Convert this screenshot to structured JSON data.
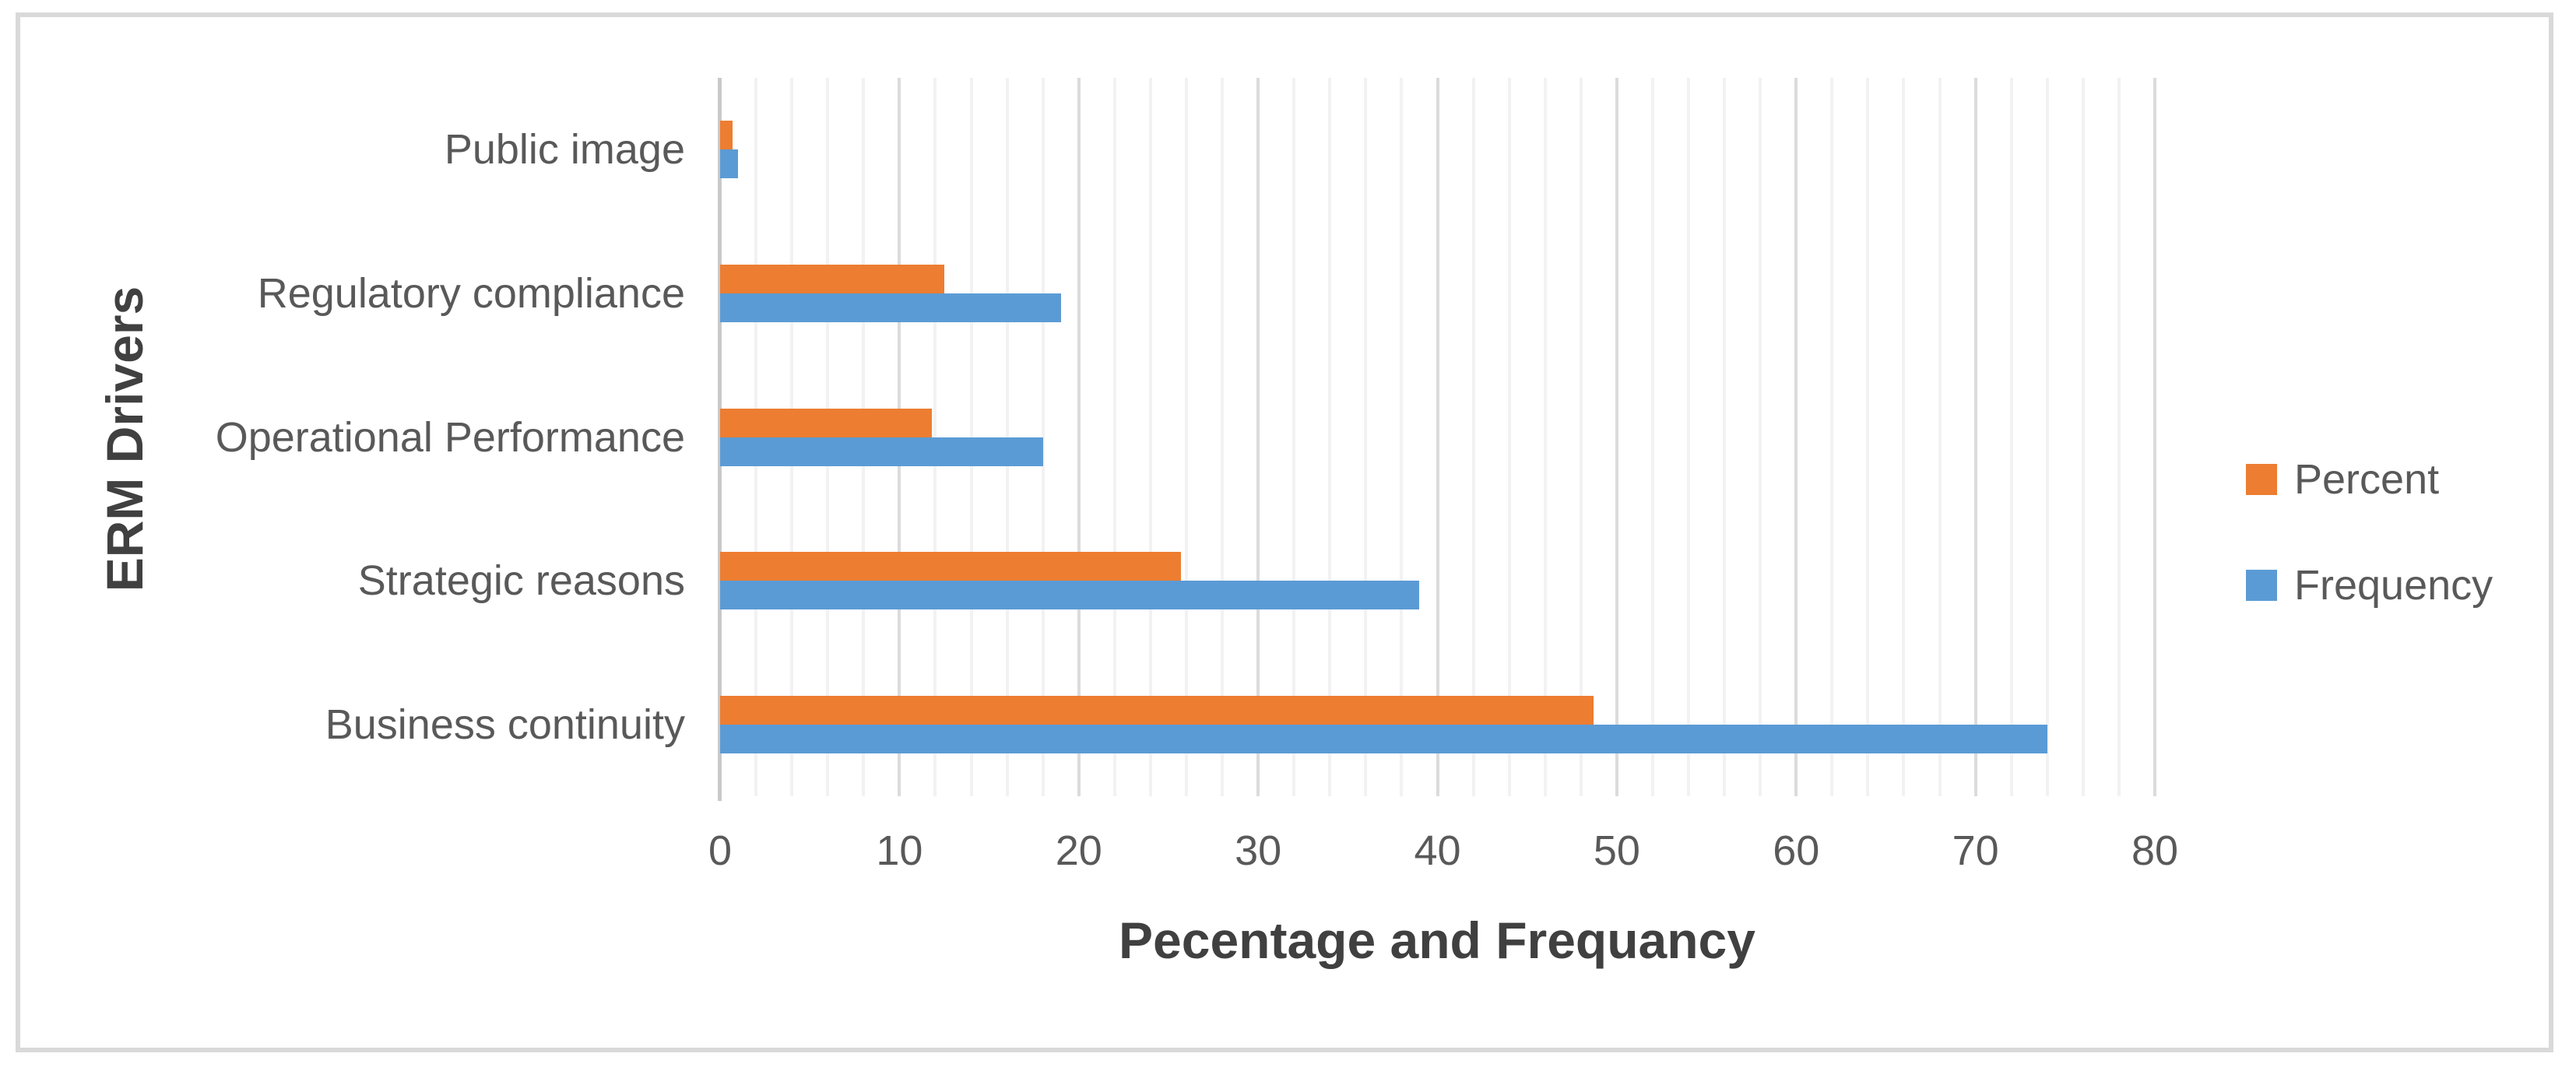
{
  "chart_data": {
    "type": "bar",
    "orientation": "horizontal",
    "title": "",
    "xlabel": "Pecentage and Frequancy",
    "ylabel": "ERM Drivers",
    "categories": [
      "Public image",
      "Regulatory compliance",
      "Operational Performance",
      "Strategic reasons",
      "Business continuity"
    ],
    "series": [
      {
        "name": "Percent",
        "color": "#ED7D31",
        "values": [
          0.7,
          12.5,
          11.8,
          25.7,
          48.7
        ]
      },
      {
        "name": "Frequency",
        "color": "#5B9BD5",
        "values": [
          1,
          19,
          18,
          39,
          74
        ]
      }
    ],
    "x_axis": {
      "min": 0,
      "max": 80,
      "major_step": 10,
      "minor_step": 2,
      "tick_labels": [
        "0",
        "10",
        "20",
        "30",
        "40",
        "50",
        "60",
        "70",
        "80"
      ]
    },
    "legend": {
      "position": "right",
      "entries": [
        "Percent",
        "Frequency"
      ]
    },
    "grid": "vertical-minor-and-major",
    "colors": {
      "text": "#595959",
      "axis_title": "#404040",
      "gridline_major": "#DBDBDB",
      "gridline_minor": "#F2F2F2"
    }
  }
}
